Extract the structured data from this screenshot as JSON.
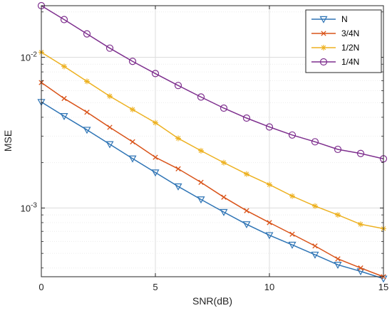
{
  "chart_data": {
    "type": "line",
    "xlabel": "SNR(dB)",
    "ylabel": "MSE",
    "y_scale": "log",
    "xlim": [
      0,
      15
    ],
    "ylim": [
      0.00035,
      0.022
    ],
    "x_ticks": [
      0,
      5,
      10,
      15
    ],
    "y_ticks": [
      {
        "value": 0.001,
        "base": "10",
        "exp": "-3"
      },
      {
        "value": 0.01,
        "base": "10",
        "exp": "-2"
      }
    ],
    "grid": true,
    "legend_position": "top-right",
    "x": [
      0,
      1,
      2,
      3,
      4,
      5,
      6,
      7,
      8,
      9,
      10,
      11,
      12,
      13,
      14,
      15
    ],
    "series": [
      {
        "name": "N",
        "color": "#2e74b5",
        "marker": "triangle-down",
        "values": [
          0.00505,
          0.00407,
          0.0033,
          0.00265,
          0.00213,
          0.00172,
          0.00139,
          0.00114,
          0.00094,
          0.00078,
          0.00066,
          0.00057,
          0.00049,
          0.00042,
          0.00038,
          0.00034
        ]
      },
      {
        "name": "3/4N",
        "color": "#d95319",
        "marker": "x",
        "values": [
          0.0068,
          0.00533,
          0.00432,
          0.00343,
          0.00275,
          0.00217,
          0.00182,
          0.00148,
          0.00118,
          0.00096,
          0.0008,
          0.00067,
          0.00056,
          0.00046,
          0.0004,
          0.00035
        ]
      },
      {
        "name": "1/2N",
        "color": "#edb120",
        "marker": "asterisk",
        "values": [
          0.0108,
          0.0087,
          0.00692,
          0.00552,
          0.0045,
          0.00368,
          0.0029,
          0.0024,
          0.002,
          0.00168,
          0.00143,
          0.0012,
          0.00103,
          0.0009,
          0.00078,
          0.00073
        ]
      },
      {
        "name": "1/4N",
        "color": "#7e2f8e",
        "marker": "circle",
        "values": [
          0.022,
          0.0178,
          0.0143,
          0.0115,
          0.0094,
          0.0078,
          0.0065,
          0.00545,
          0.0046,
          0.00395,
          0.00345,
          0.00305,
          0.00275,
          0.00245,
          0.0023,
          0.00212
        ]
      }
    ]
  }
}
